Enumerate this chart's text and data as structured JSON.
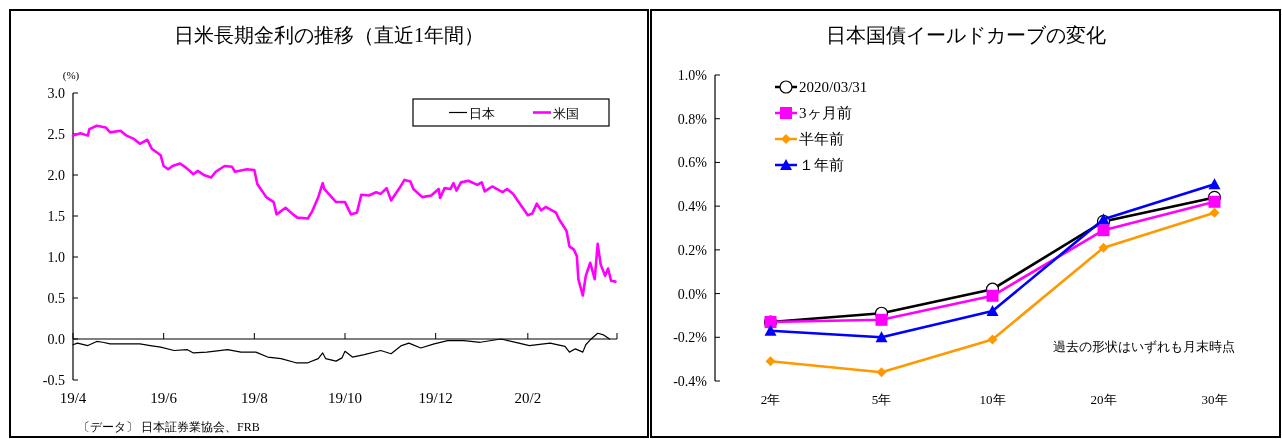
{
  "chart_data": [
    {
      "type": "line",
      "title": "日米長期金利の推移（直近1年間）",
      "ylabel": "(%)",
      "xlim": [
        "2019-04-01",
        "2020-04-01"
      ],
      "xticks": [
        {
          "value": "2019-04-01",
          "label": "19/4"
        },
        {
          "value": "2019-06-01",
          "label": "19/6"
        },
        {
          "value": "2019-08-01",
          "label": "19/8"
        },
        {
          "value": "2019-10-01",
          "label": "19/10"
        },
        {
          "value": "2019-12-01",
          "label": "19/12"
        },
        {
          "value": "2020-02-01",
          "label": "20/2"
        },
        {
          "value": "2020-04-01",
          "label": null
        }
      ],
      "ylim": [
        -0.5,
        3.0
      ],
      "yticks": [
        {
          "value": 3.0,
          "label": "3.0"
        },
        {
          "value": 2.5,
          "label": "2.5"
        },
        {
          "value": 2.0,
          "label": "2.0"
        },
        {
          "value": 1.5,
          "label": "1.5"
        },
        {
          "value": 1.0,
          "label": "1.0"
        },
        {
          "value": 0.5,
          "label": "0.5"
        },
        {
          "value": 0.0,
          "label": "0.0"
        },
        {
          "value": -0.5,
          "label": "-0.5"
        }
      ],
      "legend": "top right",
      "marker": "none",
      "annotations": [
        "〔データ〕 日本証券業協会、FRB"
      ],
      "series": [
        {
          "name": "日本",
          "color": "#000000",
          "x": [
            "2019-04-01",
            "2019-04-04",
            "2019-04-11",
            "2019-04-17",
            "2019-04-21",
            "2019-04-26",
            "2019-05-16",
            "2019-05-23",
            "2019-05-30",
            "2019-06-08",
            "2019-06-17",
            "2019-06-21",
            "2019-06-30",
            "2019-07-14",
            "2019-07-23",
            "2019-08-02",
            "2019-08-10",
            "2019-08-19",
            "2019-08-29",
            "2019-09-06",
            "2019-09-13",
            "2019-09-16",
            "2019-09-18",
            "2019-09-25",
            "2019-09-29",
            "2019-10-01",
            "2019-10-06",
            "2019-10-14",
            "2019-10-25",
            "2019-11-01",
            "2019-11-08",
            "2019-11-13",
            "2019-11-21",
            "2019-11-30",
            "2019-12-09",
            "2019-12-20",
            "2019-12-31",
            "2020-01-14",
            "2020-01-26",
            "2020-02-02",
            "2020-02-16",
            "2020-02-26",
            "2020-02-29",
            "2020-03-04",
            "2020-03-09",
            "2020-03-11",
            "2020-03-14",
            "2020-03-19",
            "2020-03-23",
            "2020-03-27"
          ],
          "values": [
            -0.07,
            -0.05,
            -0.08,
            -0.03,
            -0.04,
            -0.06,
            -0.06,
            -0.08,
            -0.1,
            -0.14,
            -0.13,
            -0.17,
            -0.16,
            -0.13,
            -0.16,
            -0.16,
            -0.22,
            -0.24,
            -0.29,
            -0.29,
            -0.24,
            -0.17,
            -0.24,
            -0.27,
            -0.23,
            -0.15,
            -0.22,
            -0.19,
            -0.14,
            -0.18,
            -0.08,
            -0.05,
            -0.11,
            -0.06,
            -0.02,
            -0.02,
            -0.04,
            0.0,
            -0.05,
            -0.08,
            -0.05,
            -0.09,
            -0.16,
            -0.12,
            -0.16,
            -0.07,
            -0.01,
            0.07,
            0.05,
            0.0
          ]
        },
        {
          "name": "米国",
          "color": "#ff00ff",
          "x": [
            "2019-04-01",
            "2019-04-06",
            "2019-04-11",
            "2019-04-12",
            "2019-04-17",
            "2019-04-23",
            "2019-04-26",
            "2019-05-03",
            "2019-05-07",
            "2019-05-12",
            "2019-05-16",
            "2019-05-21",
            "2019-05-24",
            "2019-05-30",
            "2019-06-01",
            "2019-06-04",
            "2019-06-07",
            "2019-06-12",
            "2019-06-16",
            "2019-06-21",
            "2019-06-24",
            "2019-06-28",
            "2019-07-03",
            "2019-07-06",
            "2019-07-12",
            "2019-07-17",
            "2019-07-19",
            "2019-07-27",
            "2019-08-01",
            "2019-08-03",
            "2019-08-09",
            "2019-08-14",
            "2019-08-16",
            "2019-08-22",
            "2019-08-27",
            "2019-08-30",
            "2019-09-06",
            "2019-09-09",
            "2019-09-13",
            "2019-09-16",
            "2019-09-17",
            "2019-09-22",
            "2019-09-25",
            "2019-10-01",
            "2019-10-05",
            "2019-10-09",
            "2019-10-12",
            "2019-10-17",
            "2019-10-22",
            "2019-10-25",
            "2019-10-29",
            "2019-11-01",
            "2019-11-07",
            "2019-11-10",
            "2019-11-14",
            "2019-11-16",
            "2019-11-22",
            "2019-11-28",
            "2019-12-03",
            "2019-12-04",
            "2019-12-07",
            "2019-12-11",
            "2019-12-13",
            "2019-12-15",
            "2019-12-18",
            "2019-12-23",
            "2019-12-29",
            "2020-01-01",
            "2020-01-03",
            "2020-01-08",
            "2020-01-11",
            "2020-01-15",
            "2020-01-18",
            "2020-01-22",
            "2020-01-27",
            "2020-02-01",
            "2020-02-04",
            "2020-02-07",
            "2020-02-10",
            "2020-02-13",
            "2020-02-20",
            "2020-02-22",
            "2020-02-27",
            "2020-02-29",
            "2020-03-03",
            "2020-03-05",
            "2020-03-06",
            "2020-03-09",
            "2020-03-11",
            "2020-03-14",
            "2020-03-17",
            "2020-03-19",
            "2020-03-21",
            "2020-03-24",
            "2020-03-26",
            "2020-03-28",
            "2020-03-31"
          ],
          "values": [
            2.48,
            2.51,
            2.48,
            2.56,
            2.6,
            2.58,
            2.52,
            2.54,
            2.48,
            2.44,
            2.38,
            2.43,
            2.32,
            2.24,
            2.11,
            2.07,
            2.11,
            2.14,
            2.09,
            2.01,
            2.05,
            2.0,
            1.97,
            2.04,
            2.11,
            2.1,
            2.04,
            2.07,
            2.06,
            1.89,
            1.73,
            1.67,
            1.52,
            1.6,
            1.52,
            1.48,
            1.47,
            1.56,
            1.73,
            1.9,
            1.83,
            1.73,
            1.67,
            1.67,
            1.52,
            1.54,
            1.76,
            1.75,
            1.79,
            1.77,
            1.84,
            1.69,
            1.85,
            1.94,
            1.92,
            1.83,
            1.73,
            1.75,
            1.83,
            1.72,
            1.84,
            1.83,
            1.9,
            1.81,
            1.91,
            1.93,
            1.88,
            1.91,
            1.8,
            1.86,
            1.83,
            1.79,
            1.83,
            1.77,
            1.64,
            1.51,
            1.53,
            1.65,
            1.57,
            1.61,
            1.54,
            1.46,
            1.32,
            1.13,
            1.09,
            1.01,
            0.73,
            0.53,
            0.77,
            0.93,
            0.73,
            1.16,
            0.91,
            0.77,
            0.86,
            0.71,
            0.7
          ]
        }
      ]
    },
    {
      "type": "line",
      "title": "日本国債イールドカーブの変化",
      "categories": [
        "2年",
        "5年",
        "10年",
        "20年",
        "30年"
      ],
      "ylim": [
        -0.4,
        1.0
      ],
      "yticks": [
        {
          "value": 1.0,
          "label": "1.0%"
        },
        {
          "value": 0.8,
          "label": "0.8%"
        },
        {
          "value": 0.6,
          "label": "0.6%"
        },
        {
          "value": 0.4,
          "label": "0.4%"
        },
        {
          "value": 0.2,
          "label": "0.2%"
        },
        {
          "value": 0.0,
          "label": "0.0%"
        },
        {
          "value": -0.2,
          "label": "-0.2%"
        },
        {
          "value": -0.4,
          "label": "-0.4%"
        }
      ],
      "legend": "top left",
      "annotations": [
        "過去の形状はいずれも月末時点"
      ],
      "series": [
        {
          "name": "2020/03/31",
          "color": "#000000",
          "marker": "circle",
          "values": [
            -0.13,
            -0.09,
            0.02,
            0.33,
            0.44
          ]
        },
        {
          "name": "3ヶ月前",
          "color": "#ff00ff",
          "marker": "square",
          "values": [
            -0.13,
            -0.12,
            -0.01,
            0.29,
            0.42
          ]
        },
        {
          "name": "半年前",
          "color": "#ff9900",
          "marker": "diamond",
          "values": [
            -0.31,
            -0.36,
            -0.21,
            0.21,
            0.37
          ]
        },
        {
          "name": "１年前",
          "color": "#0000ff",
          "marker": "triangle",
          "values": [
            -0.17,
            -0.2,
            -0.08,
            0.34,
            0.5
          ]
        }
      ]
    }
  ]
}
